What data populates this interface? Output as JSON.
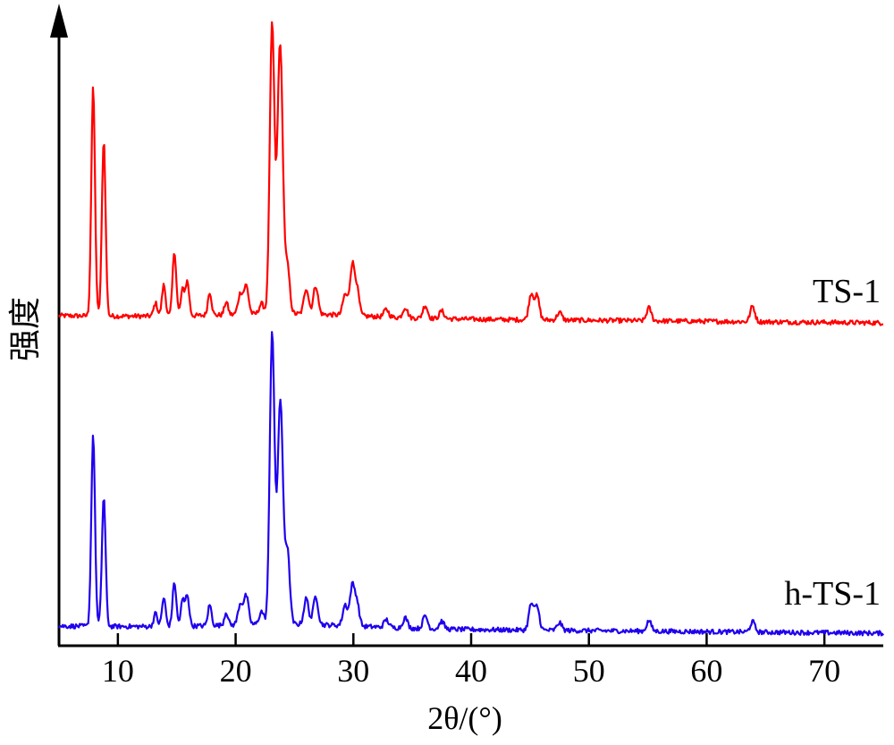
{
  "chart_data": {
    "type": "line",
    "xlabel": "2θ/(°)",
    "ylabel": "强度",
    "xlim": [
      5,
      75
    ],
    "xticks": [
      10,
      20,
      30,
      40,
      50,
      60,
      70
    ],
    "yticks_shown": false,
    "grid": false,
    "series": [
      {
        "name": "TS-1",
        "color": "#ff0000",
        "baseline": 0.0,
        "peaks": [
          [
            7.9,
            0.88
          ],
          [
            8.8,
            0.68
          ],
          [
            13.2,
            0.05
          ],
          [
            13.9,
            0.12
          ],
          [
            14.8,
            0.25
          ],
          [
            15.5,
            0.1
          ],
          [
            15.9,
            0.13
          ],
          [
            17.8,
            0.09
          ],
          [
            19.2,
            0.05
          ],
          [
            20.4,
            0.08
          ],
          [
            20.9,
            0.11
          ],
          [
            22.2,
            0.04
          ],
          [
            23.1,
            1.12
          ],
          [
            23.7,
            0.7
          ],
          [
            23.9,
            0.48
          ],
          [
            24.4,
            0.18
          ],
          [
            26.0,
            0.1
          ],
          [
            26.8,
            0.11
          ],
          [
            29.3,
            0.08
          ],
          [
            29.9,
            0.19
          ],
          [
            30.3,
            0.1
          ],
          [
            32.8,
            0.03
          ],
          [
            34.4,
            0.04
          ],
          [
            36.1,
            0.05
          ],
          [
            37.5,
            0.03
          ],
          [
            45.1,
            0.1
          ],
          [
            45.6,
            0.09
          ],
          [
            47.5,
            0.03
          ],
          [
            55.1,
            0.05
          ],
          [
            63.9,
            0.06
          ]
        ]
      },
      {
        "name": "h-TS-1",
        "color": "#1f00ee",
        "baseline": 0.0,
        "peaks": [
          [
            7.9,
            0.74
          ],
          [
            8.8,
            0.5
          ],
          [
            13.2,
            0.05
          ],
          [
            13.9,
            0.11
          ],
          [
            14.8,
            0.17
          ],
          [
            15.5,
            0.1
          ],
          [
            15.9,
            0.12
          ],
          [
            17.8,
            0.08
          ],
          [
            19.2,
            0.05
          ],
          [
            20.4,
            0.08
          ],
          [
            20.9,
            0.11
          ],
          [
            22.2,
            0.05
          ],
          [
            23.1,
            1.13
          ],
          [
            23.7,
            0.52
          ],
          [
            23.9,
            0.46
          ],
          [
            24.4,
            0.28
          ],
          [
            26.0,
            0.1
          ],
          [
            26.8,
            0.11
          ],
          [
            29.3,
            0.08
          ],
          [
            29.9,
            0.15
          ],
          [
            30.3,
            0.09
          ],
          [
            32.8,
            0.03
          ],
          [
            34.4,
            0.04
          ],
          [
            36.1,
            0.05
          ],
          [
            37.5,
            0.03
          ],
          [
            45.1,
            0.1
          ],
          [
            45.6,
            0.09
          ],
          [
            47.5,
            0.03
          ],
          [
            55.1,
            0.04
          ],
          [
            63.9,
            0.04
          ]
        ]
      }
    ]
  }
}
